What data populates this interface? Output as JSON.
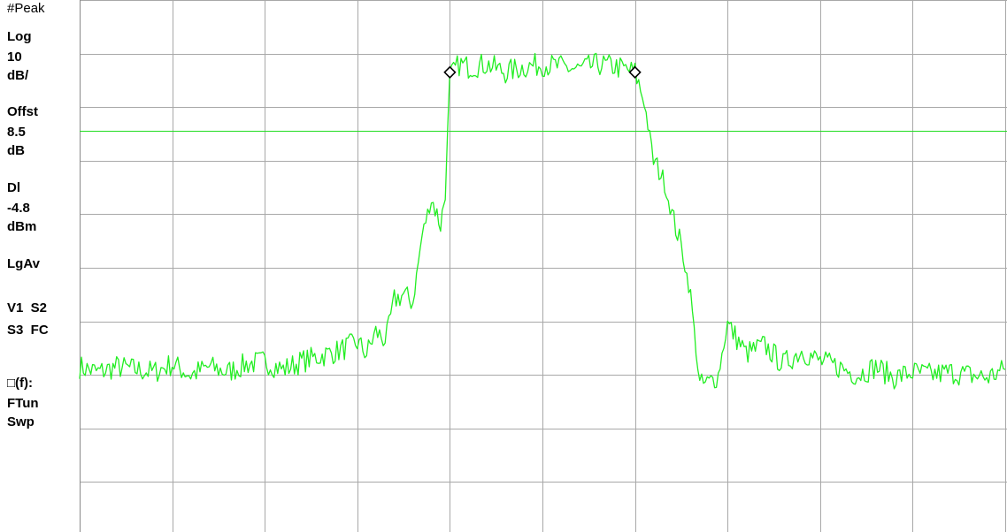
{
  "side_panel": {
    "detector": "#Peak",
    "scale_type": "Log",
    "scale_value": "10",
    "scale_unit": "dB/",
    "offset_label": "Offst",
    "offset_value": "8.5",
    "offset_unit": "dB",
    "display_line_label": "Dl",
    "display_line_value": "-4.8",
    "display_line_unit": "dBm",
    "average_mode": "LgAv",
    "flags_row1": "V1  S2",
    "flags_row2": "S3  FC",
    "function_label": "□(f):",
    "function_value": "FTun",
    "function_value2": "Swp"
  },
  "colors": {
    "trace": "#22ee22",
    "display_line": "#22dd22",
    "grid": "#a8a8a8",
    "marker": "#000000",
    "background": "#ffffff"
  },
  "chart_data": {
    "type": "line",
    "title": "",
    "xlabel": "",
    "ylabel": "",
    "grid": true,
    "divisions": {
      "x": 10,
      "y": 10
    },
    "ylim": [
      -100,
      0
    ],
    "display_line_level": -4.8,
    "reference_level": 0,
    "markers": [
      {
        "x": 4.0,
        "y": -13.5
      },
      {
        "x": 6.0,
        "y": -13.5
      }
    ],
    "series": [
      {
        "x": [
          0,
          0.2,
          0.4,
          0.6,
          0.8,
          1.0,
          1.2,
          1.4,
          1.6,
          1.8,
          2.0,
          2.2,
          2.4,
          2.6,
          2.8,
          3.0,
          3.1,
          3.2,
          3.3,
          3.4,
          3.5,
          3.6,
          3.7,
          3.8,
          3.9,
          3.95,
          4.0,
          4.1,
          4.2,
          4.4,
          4.6,
          4.8,
          5.0,
          5.2,
          5.4,
          5.6,
          5.8,
          6.0,
          6.1,
          6.2,
          6.3,
          6.4,
          6.5,
          6.6,
          6.7,
          6.8,
          6.9,
          7.0,
          7.2,
          7.4,
          7.6,
          7.8,
          8.0,
          8.2,
          8.4,
          8.6,
          8.8,
          9.0,
          9.2,
          9.4,
          9.6,
          9.8,
          10.0
        ],
        "y": [
          -68.5,
          -69.5,
          -68.5,
          -69.0,
          -69.5,
          -68.0,
          -70.0,
          -68.5,
          -69.5,
          -68.0,
          -67.5,
          -69.0,
          -67.5,
          -66.5,
          -65.5,
          -64.0,
          -66.0,
          -62.0,
          -63.5,
          -56.0,
          -55.0,
          -56.5,
          -44.0,
          -37.0,
          -42.0,
          -36.0,
          -14.5,
          -12.0,
          -12.5,
          -12.0,
          -13.5,
          -12.5,
          -12.0,
          -12.5,
          -13.0,
          -12.0,
          -12.5,
          -13.5,
          -19.0,
          -30.0,
          -33.0,
          -40.0,
          -46.0,
          -55.0,
          -72.0,
          -71.5,
          -70.0,
          -60.5,
          -66.0,
          -64.5,
          -68.0,
          -65.5,
          -67.5,
          -68.5,
          -70.0,
          -68.5,
          -70.5,
          -69.5,
          -70.0,
          -69.5,
          -70.0,
          -70.5,
          -69.0
        ]
      }
    ]
  }
}
